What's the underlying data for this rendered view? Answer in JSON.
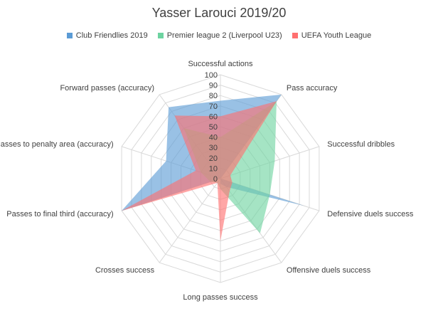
{
  "chart_data": {
    "type": "radar",
    "title": "Yasser Larouci 2019/20",
    "categories": [
      "Successful actions",
      "Pass accuracy",
      "Successful dribbles",
      "Defensive duels success",
      "Offensive duels success",
      "Long passes success",
      "Crosses success",
      "Passes to final third (accuracy)",
      "Passes to penalty area (accuracy)",
      "Forward passes (accuracy)"
    ],
    "rlim": [
      0,
      100
    ],
    "ticks": [
      "0",
      "10",
      "20",
      "30",
      "40",
      "50",
      "60",
      "70",
      "80",
      "90",
      "100"
    ],
    "legend_position": "top",
    "grid": true,
    "series": [
      {
        "name": "Club Friendlies 2019",
        "color": "#5b9bd5",
        "values": [
          75,
          100,
          0,
          85,
          10,
          5,
          0,
          100,
          55,
          85
        ]
      },
      {
        "name": "Premier league 2 (Liverpool U23)",
        "color": "#6dd3a0",
        "values": [
          40,
          92,
          55,
          50,
          65,
          10,
          5,
          10,
          20,
          60
        ]
      },
      {
        "name": "UEFA Youth League",
        "color": "#ff7070",
        "values": [
          60,
          92,
          10,
          12,
          15,
          60,
          5,
          100,
          25,
          75
        ]
      }
    ]
  }
}
